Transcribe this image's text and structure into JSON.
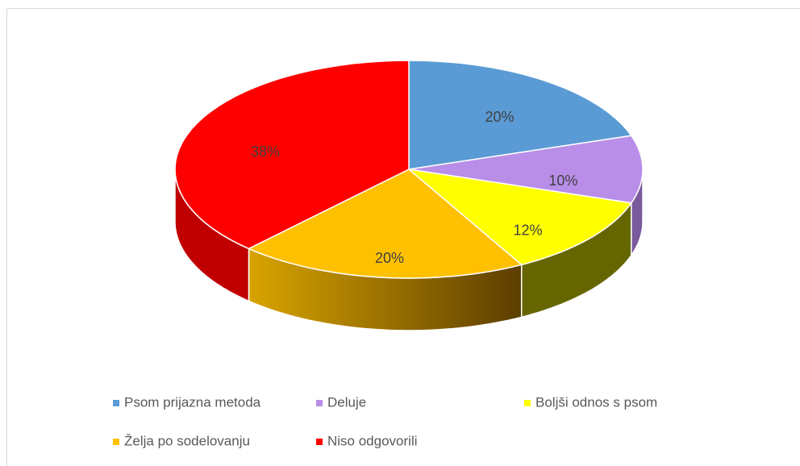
{
  "chart_data": {
    "type": "pie3d",
    "categories": [
      "Psom prijazna metoda",
      "Deluje",
      "Boljši odnos s psom",
      "Želja po sodelovanju",
      "Niso odgovorili"
    ],
    "values": [
      20,
      10,
      12,
      20,
      38
    ],
    "value_labels": [
      "20%",
      "10%",
      "12%",
      "20%",
      "38%"
    ],
    "colors": [
      "#5b9bd5",
      "#b88ee8",
      "#ffff00",
      "#ffc000",
      "#ff0000"
    ],
    "legend": "bottom"
  }
}
